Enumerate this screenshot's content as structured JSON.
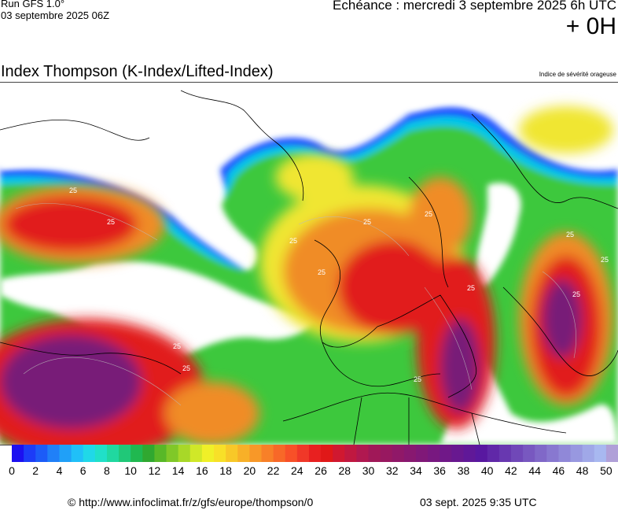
{
  "header": {
    "run_label": "Run GFS 1.0°",
    "run_date": "03 septembre 2025 06Z",
    "echeance": "Echéance : mercredi 3 septembre 2025 6h UTC",
    "offset": "+ 0H"
  },
  "title": "Index Thompson (K-Index/Lifted-Index)",
  "subtitle": "Indice de sévérité orageuse",
  "map": {
    "contour_labels": [
      "25",
      "25",
      "25",
      "25",
      "25",
      "25",
      "25",
      "25",
      "25",
      "25",
      "25",
      "25",
      "25",
      "25"
    ],
    "colors": {
      "sea": "#ffffff",
      "land_outline": "#000000",
      "low": "#1e3cff",
      "cyan": "#00c8e6",
      "green": "#3cc83c",
      "yellow": "#f0e632",
      "orange": "#f08c28",
      "red": "#e11e1e",
      "purple": "#781e78"
    }
  },
  "scale": {
    "min": 0,
    "max": 51,
    "step": 1,
    "labels": [
      "0",
      "2",
      "4",
      "6",
      "8",
      "10",
      "12",
      "14",
      "16",
      "18",
      "20",
      "22",
      "24",
      "26",
      "28",
      "30",
      "32",
      "34",
      "36",
      "38",
      "40",
      "42",
      "44",
      "46",
      "48",
      "50"
    ],
    "colors": [
      "#1c10f0",
      "#1c3cf8",
      "#1c5cf8",
      "#2080f8",
      "#20a0f8",
      "#20c0f8",
      "#20d8e8",
      "#20e0c8",
      "#20d8a0",
      "#20c878",
      "#20b850",
      "#30a830",
      "#58b828",
      "#80c828",
      "#a8d828",
      "#d0e828",
      "#f0f028",
      "#f8e028",
      "#f8c828",
      "#f8b028",
      "#f89828",
      "#f88028",
      "#f86828",
      "#f85028",
      "#f03828",
      "#e82020",
      "#e01818",
      "#d01830",
      "#c01840",
      "#b01850",
      "#a01858",
      "#981860",
      "#901868",
      "#881870",
      "#801878",
      "#781880",
      "#701888",
      "#681890",
      "#601898",
      "#5818a0",
      "#6028a8",
      "#6838b0",
      "#7048b8",
      "#7858c0",
      "#8068c8",
      "#8878d0",
      "#9088d8",
      "#9898e0",
      "#a0a8e8",
      "#a8b8f0",
      "#b0a0d8"
    ]
  },
  "footer": {
    "url": "© http://www.infoclimat.fr/z/gfs/europe/thompson/0",
    "timestamp": "03 sept. 2025  9:35 UTC"
  }
}
